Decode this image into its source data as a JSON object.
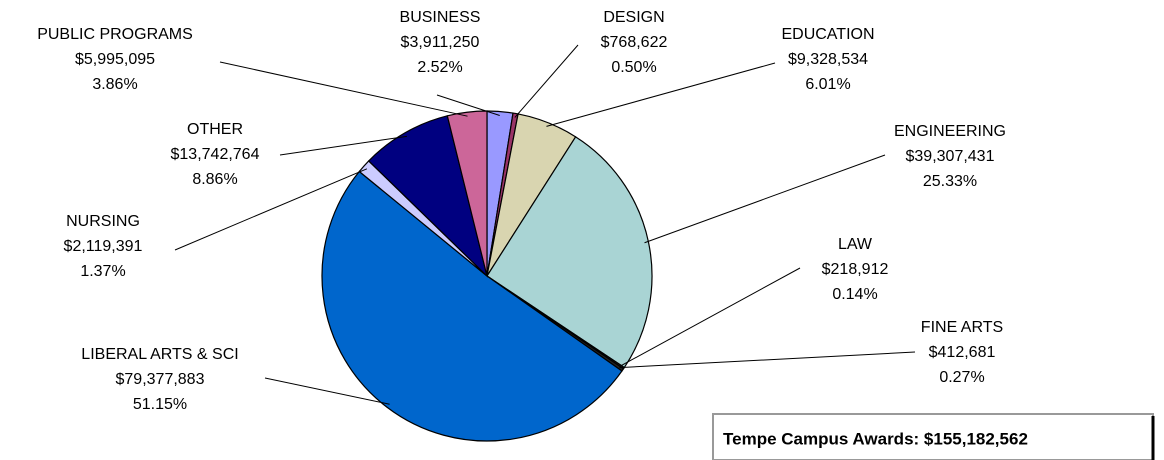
{
  "chart_data": {
    "type": "pie",
    "categories": [
      "BUSINESS",
      "DESIGN",
      "EDUCATION",
      "ENGINEERING",
      "LAW",
      "FINE ARTS",
      "LIBERAL ARTS & SCI",
      "NURSING",
      "OTHER",
      "PUBLIC PROGRAMS"
    ],
    "values": [
      3911250,
      768622,
      9328534,
      39307431,
      218912,
      412681,
      79377883,
      2119391,
      13742764,
      5995095
    ],
    "value_labels": [
      "$3,911,250",
      "$768,622",
      "$9,328,534",
      "$39,307,431",
      "$218,912",
      "$412,681",
      "$79,377,883",
      "$2,119,391",
      "$13,742,764",
      "$5,995,095"
    ],
    "percent_labels": [
      "2.52%",
      "0.50%",
      "6.01%",
      "25.33%",
      "0.14%",
      "0.27%",
      "51.15%",
      "1.37%",
      "8.86%",
      "3.86%"
    ],
    "colors": [
      "#9999ff",
      "#993366",
      "#d9d5b0",
      "#a9d4d4",
      "#333333",
      "#222222",
      "#0066cc",
      "#ccccff",
      "#000080",
      "#cc6699"
    ],
    "annotation": "Tempe Campus Awards: $155,182,562"
  }
}
